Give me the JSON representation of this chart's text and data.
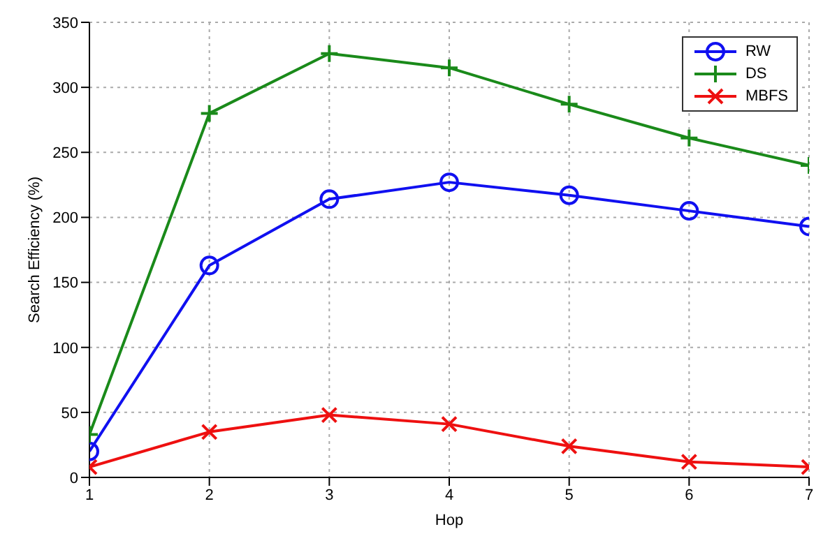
{
  "chart_data": {
    "type": "line",
    "xlabel": "Hop",
    "ylabel": "Search Efficiency (%)",
    "x": [
      1,
      2,
      3,
      4,
      5,
      6,
      7
    ],
    "series": [
      {
        "name": "RW",
        "color": "#1010f0",
        "marker": "circle",
        "values": [
          20,
          163,
          214,
          227,
          217,
          205,
          193
        ]
      },
      {
        "name": "DS",
        "color": "#1a8a1a",
        "marker": "plus",
        "values": [
          33,
          280,
          326,
          315,
          287,
          261,
          240
        ]
      },
      {
        "name": "MBFS",
        "color": "#ee1010",
        "marker": "cross",
        "values": [
          8,
          35,
          48,
          41,
          24,
          12,
          8
        ]
      }
    ],
    "xlim": [
      1,
      7
    ],
    "xticks": [
      1,
      2,
      3,
      4,
      5,
      6,
      7
    ],
    "ylim": [
      0,
      350
    ],
    "yticks": [
      0,
      50,
      100,
      150,
      200,
      250,
      300,
      350
    ],
    "grid": true,
    "legend": "top right"
  }
}
